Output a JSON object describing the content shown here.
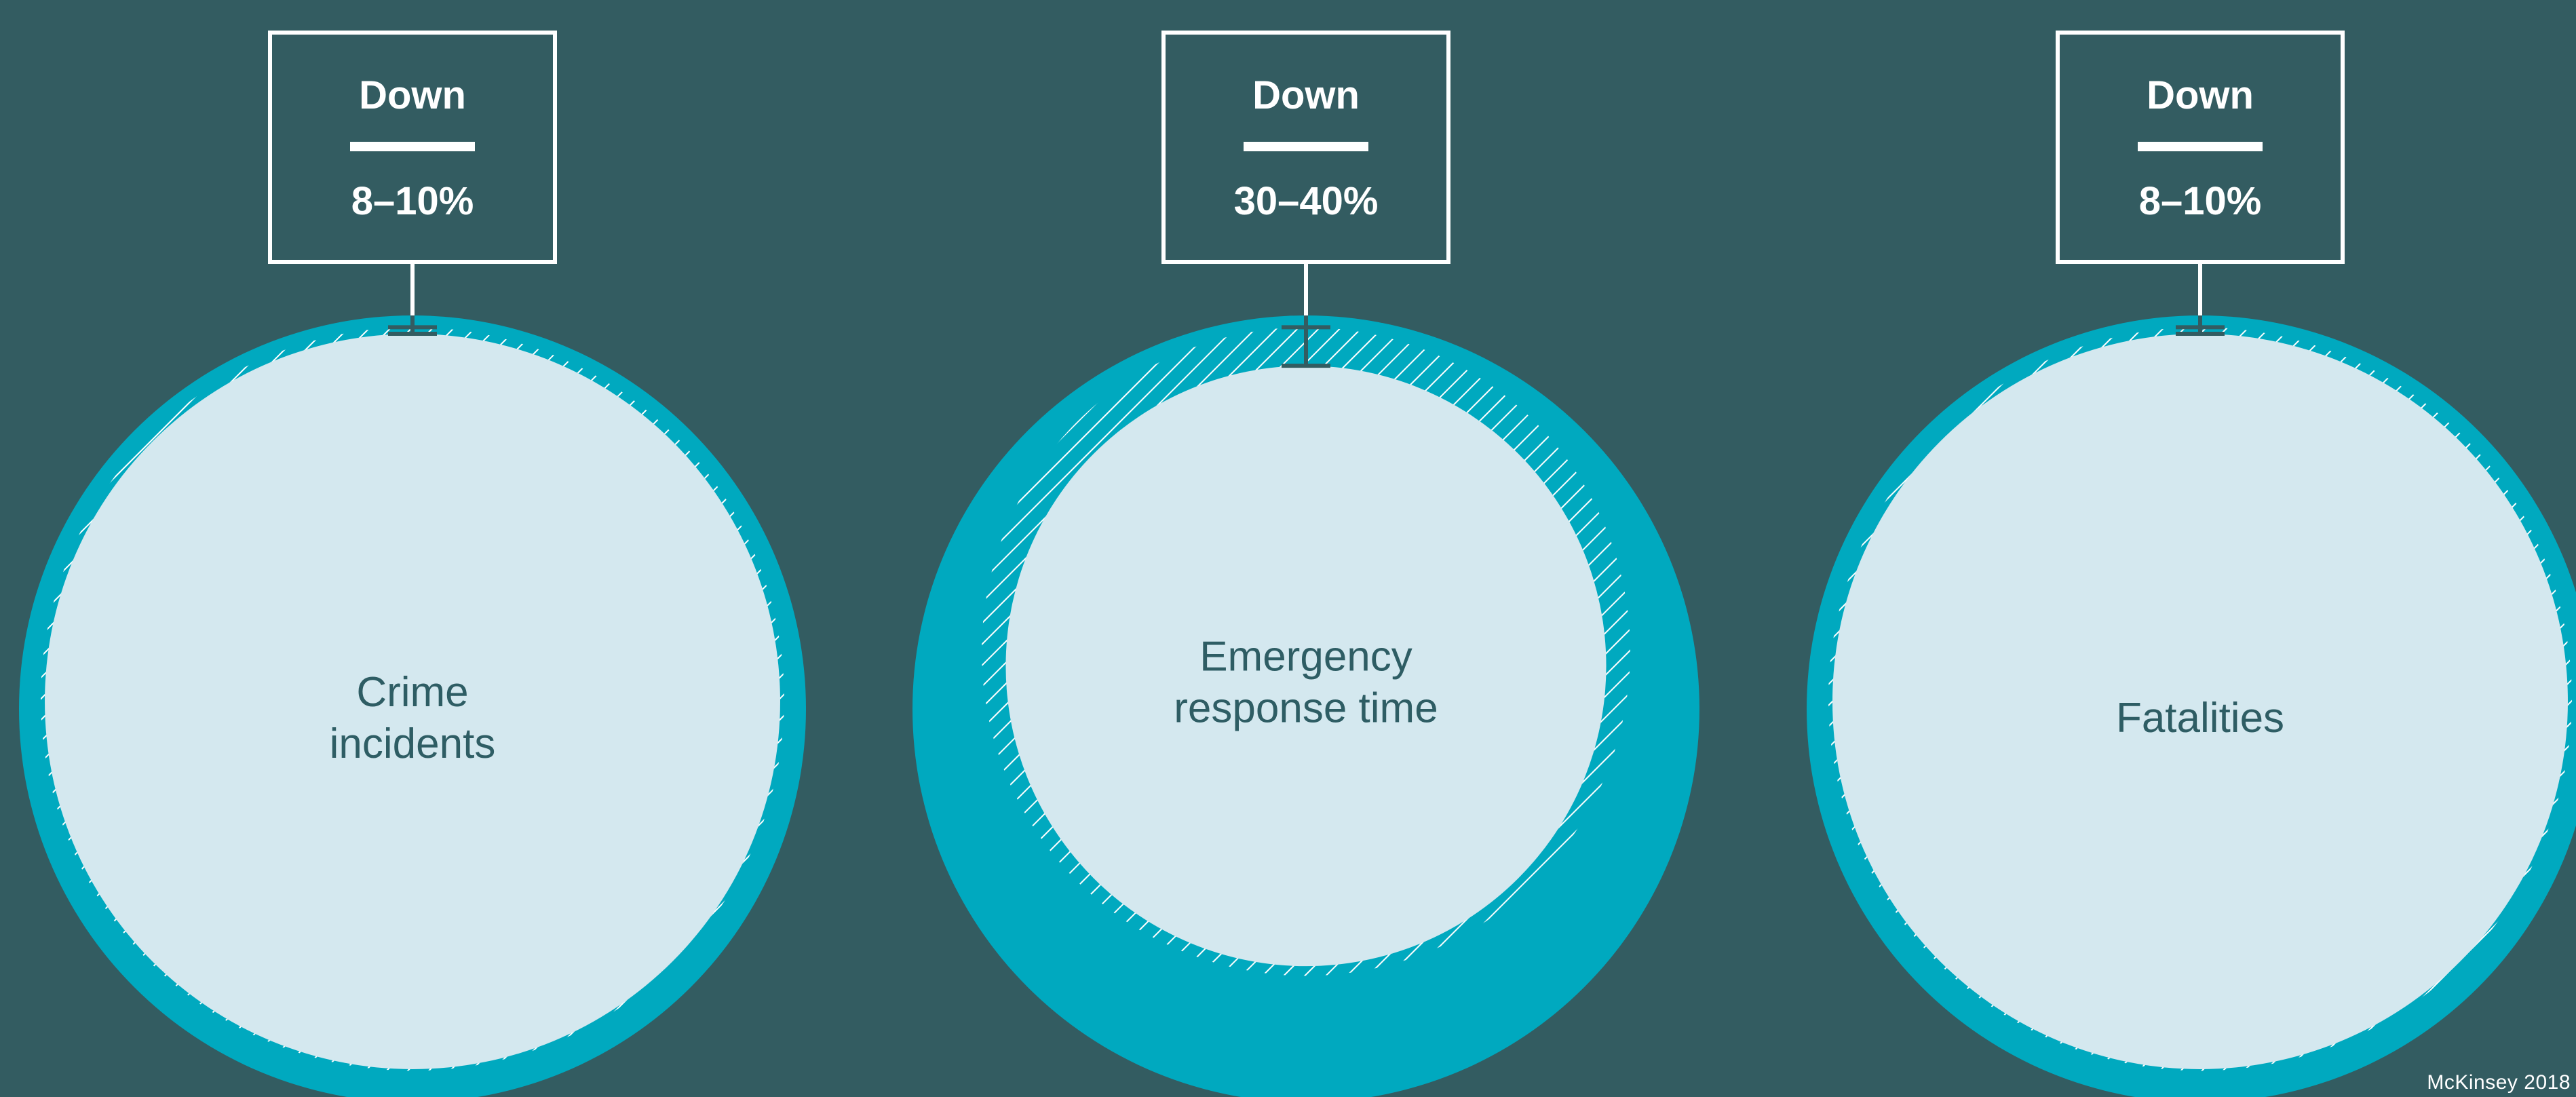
{
  "colors": {
    "background": "#335c61",
    "outer_circle": "#00a9bf",
    "inner_circle": "#d4e8ef",
    "box_stroke": "#ffffff",
    "label_text": "#2e5d64",
    "box_text": "#ffffff",
    "connector": "#335c61"
  },
  "chart_data": {
    "type": "proportional-area",
    "items": [
      {
        "label": "Crime\nincidents",
        "direction": "Down",
        "change": "8–10%",
        "reduction_low": 8,
        "reduction_high": 10
      },
      {
        "label": "Emergency\nresponse time",
        "direction": "Down",
        "change": "30–40%",
        "reduction_low": 30,
        "reduction_high": 40
      },
      {
        "label": "Fatalities",
        "direction": "Down",
        "change": "8–10%",
        "reduction_low": 8,
        "reduction_high": 10
      }
    ]
  },
  "footer": {
    "credit": "McKinsey 2018"
  }
}
